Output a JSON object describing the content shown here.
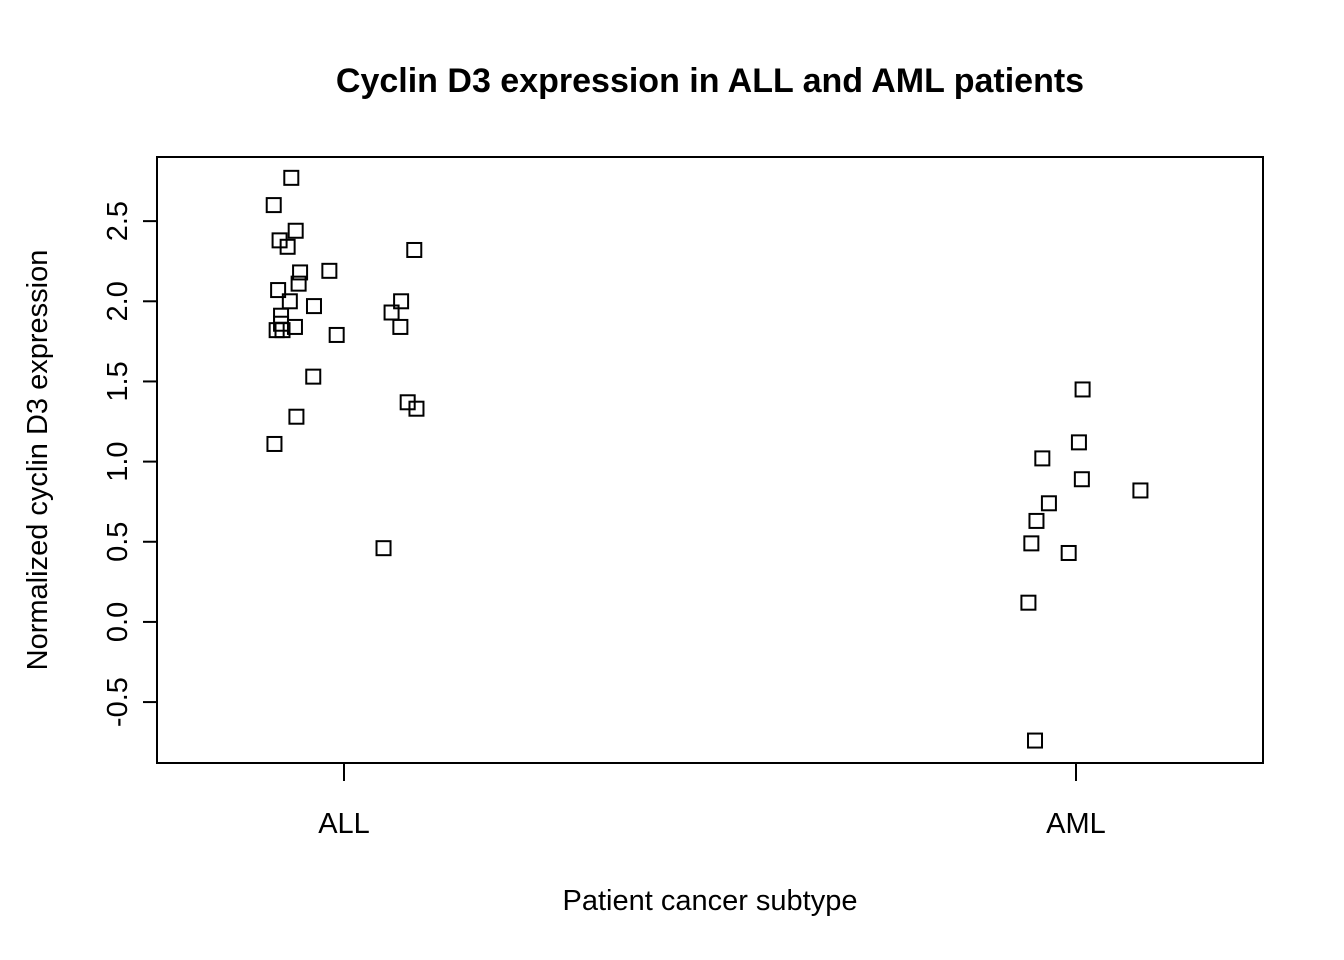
{
  "chart_data": {
    "type": "scatter",
    "title": "Cyclin D3 expression in ALL and AML patients",
    "xlabel": "Patient cancer subtype",
    "ylabel": "Normalized cyclin D3 expression",
    "categories": [
      "ALL",
      "AML"
    ],
    "ylim": [
      -0.88,
      2.9
    ],
    "yticks": [
      -0.5,
      0.0,
      0.5,
      1.0,
      1.5,
      2.0,
      2.5
    ],
    "ytick_labels": [
      "-0.5",
      "0.0",
      "0.5",
      "1.0",
      "1.5",
      "2.0",
      "2.5"
    ],
    "marker": "open-square",
    "grid": false,
    "series": [
      {
        "category": "ALL",
        "points": [
          {
            "x": 0.904,
            "y": 2.6
          },
          {
            "x": 0.928,
            "y": 2.77
          },
          {
            "x": 0.912,
            "y": 2.38
          },
          {
            "x": 0.934,
            "y": 2.44
          },
          {
            "x": 0.923,
            "y": 2.34
          },
          {
            "x": 1.096,
            "y": 2.32
          },
          {
            "x": 0.91,
            "y": 2.07
          },
          {
            "x": 0.938,
            "y": 2.11
          },
          {
            "x": 0.94,
            "y": 2.18
          },
          {
            "x": 0.98,
            "y": 2.19
          },
          {
            "x": 0.926,
            "y": 2.0
          },
          {
            "x": 0.959,
            "y": 1.97
          },
          {
            "x": 1.078,
            "y": 2.0
          },
          {
            "x": 1.065,
            "y": 1.93
          },
          {
            "x": 0.914,
            "y": 1.91
          },
          {
            "x": 0.914,
            "y": 1.86
          },
          {
            "x": 0.908,
            "y": 1.82
          },
          {
            "x": 0.916,
            "y": 1.82
          },
          {
            "x": 0.933,
            "y": 1.84
          },
          {
            "x": 0.99,
            "y": 1.79
          },
          {
            "x": 1.077,
            "y": 1.84
          },
          {
            "x": 0.958,
            "y": 1.53
          },
          {
            "x": 1.087,
            "y": 1.37
          },
          {
            "x": 1.099,
            "y": 1.33
          },
          {
            "x": 0.935,
            "y": 1.28
          },
          {
            "x": 0.905,
            "y": 1.11
          },
          {
            "x": 1.054,
            "y": 0.46
          }
        ]
      },
      {
        "category": "AML",
        "points": [
          {
            "x": 2.009,
            "y": 1.45
          },
          {
            "x": 2.004,
            "y": 1.12
          },
          {
            "x": 1.954,
            "y": 1.02
          },
          {
            "x": 2.008,
            "y": 0.89
          },
          {
            "x": 2.088,
            "y": 0.82
          },
          {
            "x": 1.963,
            "y": 0.74
          },
          {
            "x": 1.946,
            "y": 0.63
          },
          {
            "x": 1.939,
            "y": 0.49
          },
          {
            "x": 1.99,
            "y": 0.43
          },
          {
            "x": 1.935,
            "y": 0.12
          },
          {
            "x": 1.944,
            "y": -0.74
          }
        ]
      }
    ]
  }
}
